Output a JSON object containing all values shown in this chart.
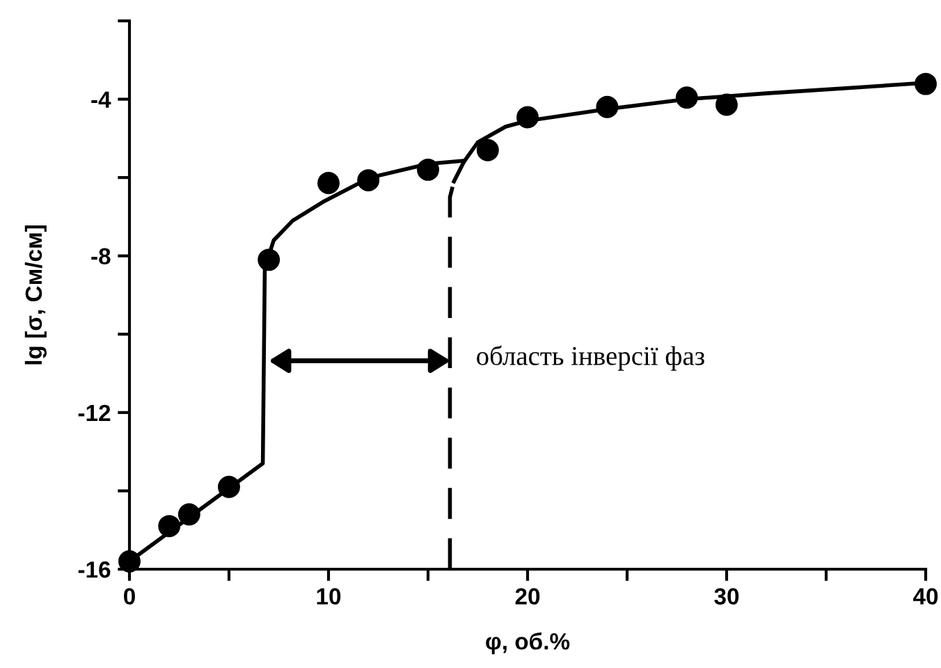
{
  "chart_data": {
    "type": "scatter",
    "xlabel": "φ, об.%",
    "ylabel": "lg [σ, См/см]",
    "xlim": [
      0,
      40
    ],
    "xticks": [
      0,
      {
        "value": 5,
        "label": null
      },
      10,
      {
        "value": 15,
        "label": null
      },
      20,
      {
        "value": 25,
        "label": null
      },
      30,
      {
        "value": 35,
        "label": null
      },
      40
    ],
    "ylim": [
      -16,
      -2
    ],
    "yticks": [
      -16,
      {
        "value": -14,
        "label": null
      },
      -12,
      {
        "value": -10,
        "label": null
      },
      -8,
      {
        "value": -6,
        "label": null
      },
      -4,
      {
        "value": -2,
        "label": null
      }
    ],
    "grid": false,
    "annotations": [
      "область інверсії фаз"
    ],
    "series": [
      {
        "type": "line",
        "color": "#000000",
        "line_style": "solid",
        "marker": "none",
        "x": [
          0,
          6.7,
          6.8,
          7.25,
          8.2,
          9.8,
          12.1,
          15.0,
          16.8
        ],
        "values": [
          -15.8,
          -13.3,
          -8.3,
          -7.6,
          -7.1,
          -6.6,
          -6.0,
          -5.65,
          -5.57
        ]
      },
      {
        "type": "line",
        "color": "#000000",
        "line_style": "dashed",
        "marker": "none",
        "x": [
          16.1,
          16.1,
          16.3
        ],
        "values": [
          -16,
          -6.5,
          -6.1
        ]
      },
      {
        "type": "line",
        "color": "#000000",
        "line_style": "solid",
        "marker": "none",
        "x": [
          16.3,
          16.8,
          17.5,
          18.9,
          20,
          24,
          28,
          32,
          36,
          40
        ],
        "values": [
          -6.1,
          -5.6,
          -5.1,
          -4.7,
          -4.55,
          -4.25,
          -4.0,
          -3.85,
          -3.72,
          -3.58
        ]
      },
      {
        "color": "#000000",
        "marker": "circle",
        "x": [
          0,
          2,
          3,
          5,
          7,
          10,
          12,
          15,
          18,
          20,
          24,
          28,
          30,
          40
        ],
        "values": [
          -15.8,
          -14.9,
          -14.6,
          -13.9,
          -8.1,
          -6.14,
          -6.07,
          -5.8,
          -5.3,
          -4.46,
          -4.2,
          -3.96,
          -4.14,
          -3.61
        ]
      }
    ]
  }
}
